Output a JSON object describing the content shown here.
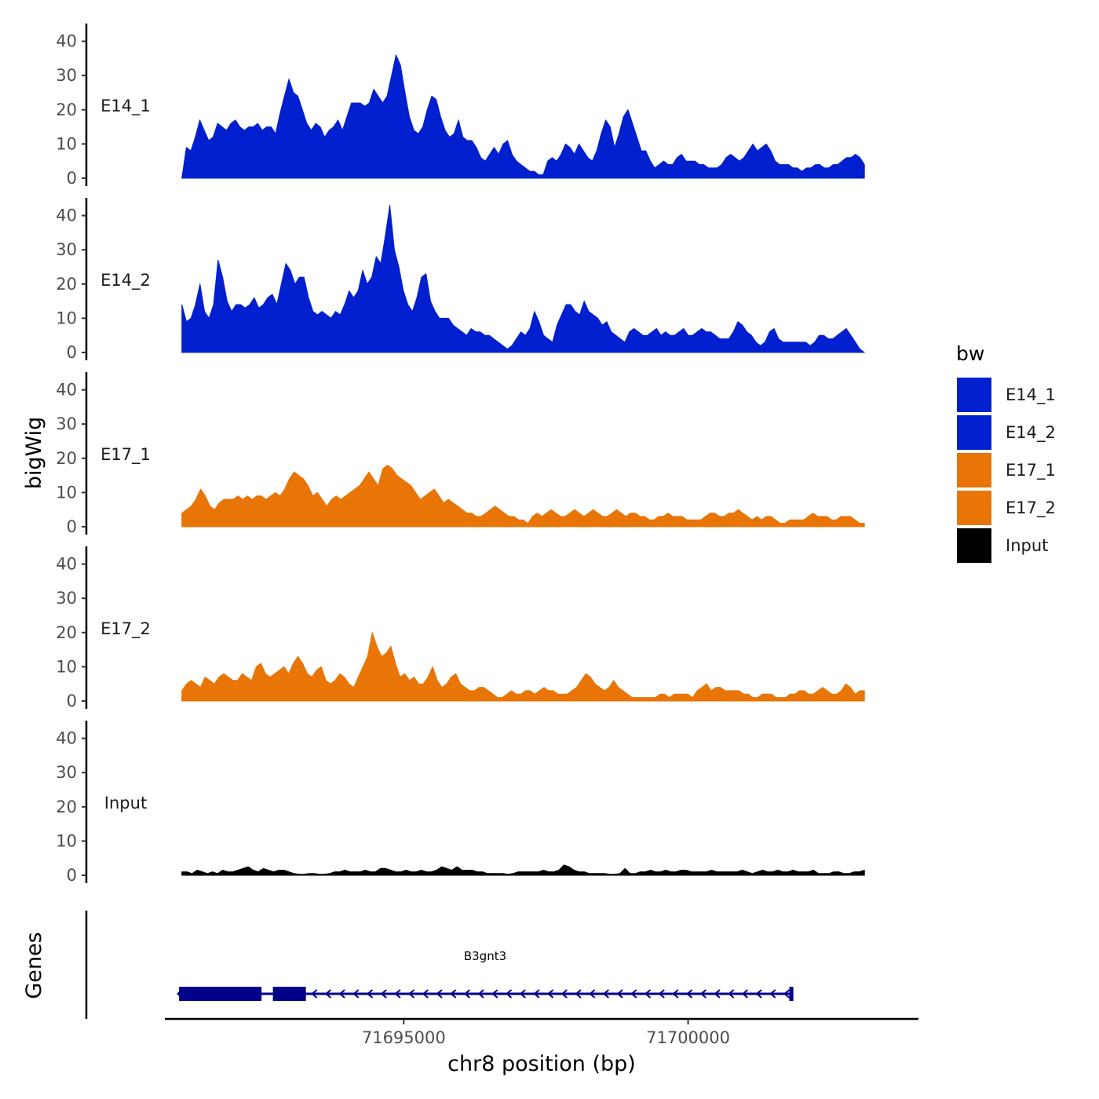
{
  "chart_data": {
    "type": "area",
    "ylabel": "bigWig",
    "xlabel": "chr8 position (bp)",
    "ylim": [
      0,
      45
    ],
    "yticks": [
      0,
      10,
      20,
      30,
      40
    ],
    "xlim": [
      71690800,
      71704050
    ],
    "xticks": [
      71695000,
      71700000
    ],
    "xtick_labels": [
      "71695000",
      "71700000"
    ],
    "genes_label": "Genes",
    "legend": {
      "title": "bw",
      "entries": [
        {
          "name": "E14_1",
          "color": "#0020CF"
        },
        {
          "name": "E14_2",
          "color": "#0020CF"
        },
        {
          "name": "E17_1",
          "color": "#E87505"
        },
        {
          "name": "E17_2",
          "color": "#E87505"
        },
        {
          "name": "Input",
          "color": "#000000"
        }
      ]
    },
    "x_start": 71691100,
    "x_end": 71703100,
    "series": [
      {
        "name": "E14_1",
        "color": "#0020CF",
        "values": [
          0,
          9,
          8,
          12,
          17,
          14,
          11,
          12,
          16,
          15,
          14,
          16,
          17,
          15,
          14,
          15,
          15,
          16,
          14,
          15,
          15,
          13,
          19,
          24,
          29,
          25,
          24,
          20,
          16,
          14,
          16,
          15,
          12,
          14,
          15,
          17,
          14,
          18,
          22,
          22,
          22,
          21,
          22,
          26,
          24,
          22,
          24,
          30,
          36,
          33,
          25,
          18,
          14,
          13,
          15,
          20,
          24,
          23,
          18,
          14,
          12,
          13,
          17,
          12,
          11,
          11,
          9,
          6,
          5,
          7,
          9,
          7,
          10,
          11,
          7,
          5,
          4,
          3,
          2,
          2,
          1,
          1,
          5,
          6,
          5,
          7,
          10,
          9,
          7,
          10,
          8,
          6,
          5,
          8,
          13,
          17,
          15,
          9,
          13,
          18,
          20,
          16,
          12,
          8,
          8,
          5,
          3,
          4,
          5,
          4,
          4,
          6,
          7,
          5,
          5,
          5,
          4,
          4,
          3,
          3,
          3,
          4,
          6,
          7,
          6,
          5,
          6,
          8,
          10,
          8,
          9,
          10,
          8,
          5,
          4,
          4,
          4,
          3,
          3,
          2,
          3,
          3,
          4,
          4,
          3,
          3,
          4,
          4,
          5,
          6,
          6,
          7,
          6,
          4
        ]
      },
      {
        "name": "E14_2",
        "color": "#0020CF",
        "values": [
          14,
          9,
          10,
          14,
          20,
          12,
          10,
          14,
          27,
          22,
          15,
          12,
          14,
          14,
          13,
          14,
          16,
          13,
          14,
          16,
          17,
          14,
          20,
          26,
          24,
          20,
          22,
          22,
          16,
          12,
          11,
          12,
          11,
          10,
          12,
          11,
          14,
          18,
          16,
          18,
          24,
          20,
          22,
          28,
          26,
          34,
          43,
          30,
          25,
          18,
          14,
          12,
          16,
          22,
          23,
          15,
          12,
          10,
          10,
          10,
          8,
          7,
          6,
          5,
          7,
          6,
          6,
          5,
          5,
          4,
          3,
          2,
          1,
          2,
          4,
          6,
          5,
          7,
          12,
          9,
          5,
          4,
          3,
          8,
          11,
          14,
          14,
          12,
          11,
          15,
          12,
          11,
          10,
          8,
          9,
          6,
          5,
          4,
          3,
          6,
          7,
          6,
          5,
          5,
          6,
          7,
          5,
          6,
          5,
          5,
          6,
          7,
          5,
          5,
          6,
          7,
          6,
          6,
          5,
          4,
          4,
          4,
          6,
          9,
          8,
          6,
          5,
          3,
          2,
          3,
          6,
          7,
          4,
          3,
          3,
          3,
          3,
          3,
          3,
          2,
          3,
          5,
          5,
          4,
          4,
          5,
          6,
          7,
          5,
          3,
          1,
          0
        ]
      },
      {
        "name": "E17_1",
        "color": "#E87505",
        "values": [
          4,
          5,
          6,
          8,
          11,
          9,
          6,
          5,
          7,
          8,
          8,
          8,
          9,
          8,
          9,
          8,
          9,
          9,
          8,
          9,
          10,
          9,
          11,
          14,
          16,
          15,
          14,
          12,
          9,
          10,
          8,
          6,
          8,
          9,
          8,
          9,
          10,
          11,
          12,
          14,
          16,
          14,
          12,
          17,
          18,
          17,
          15,
          14,
          13,
          12,
          10,
          8,
          9,
          10,
          11,
          9,
          7,
          8,
          7,
          6,
          5,
          4,
          4,
          3,
          3,
          4,
          5,
          6,
          5,
          4,
          3,
          3,
          2,
          2,
          1,
          3,
          4,
          3,
          4,
          5,
          4,
          3,
          3,
          4,
          5,
          4,
          3,
          4,
          5,
          4,
          3,
          3,
          4,
          5,
          4,
          3,
          4,
          4,
          3,
          3,
          2,
          2,
          3,
          3,
          4,
          3,
          3,
          3,
          2,
          2,
          2,
          2,
          3,
          4,
          4,
          3,
          3,
          4,
          4,
          5,
          4,
          3,
          2,
          3,
          2,
          3,
          3,
          2,
          1,
          1,
          2,
          2,
          2,
          2,
          3,
          4,
          3,
          3,
          3,
          2,
          2,
          3,
          3,
          3,
          2,
          1,
          1
        ]
      },
      {
        "name": "E17_2",
        "color": "#E87505",
        "values": [
          3,
          5,
          6,
          5,
          4,
          7,
          6,
          5,
          7,
          8,
          7,
          6,
          6,
          8,
          7,
          6,
          10,
          11,
          8,
          7,
          8,
          9,
          10,
          8,
          11,
          13,
          11,
          8,
          7,
          9,
          10,
          6,
          5,
          6,
          8,
          7,
          5,
          4,
          7,
          10,
          13,
          20,
          16,
          13,
          14,
          16,
          11,
          7,
          8,
          6,
          7,
          5,
          5,
          7,
          10,
          6,
          4,
          5,
          7,
          8,
          5,
          4,
          3,
          3,
          4,
          4,
          3,
          2,
          1,
          1,
          2,
          3,
          2,
          2,
          3,
          3,
          2,
          3,
          4,
          3,
          3,
          2,
          2,
          2,
          3,
          4,
          6,
          8,
          7,
          5,
          4,
          3,
          4,
          6,
          4,
          3,
          2,
          1,
          1,
          1,
          1,
          1,
          1,
          2,
          2,
          1,
          2,
          2,
          2,
          2,
          1,
          3,
          4,
          5,
          3,
          4,
          4,
          3,
          3,
          3,
          3,
          2,
          2,
          1,
          1,
          2,
          2,
          2,
          1,
          1,
          1,
          2,
          2,
          3,
          3,
          2,
          2,
          3,
          4,
          3,
          2,
          2,
          3,
          5,
          4,
          2,
          3,
          3
        ]
      },
      {
        "name": "Input",
        "color": "#000000",
        "values": [
          1,
          1,
          0.5,
          1.5,
          1,
          0.5,
          1,
          0.5,
          1.5,
          1,
          1,
          1.5,
          2,
          2.5,
          1.5,
          1,
          2,
          1.5,
          1,
          1.5,
          1.5,
          1,
          0.5,
          0.3,
          0.3,
          0.5,
          0.5,
          0.3,
          0.3,
          0.5,
          1,
          1,
          1.5,
          1,
          1,
          1,
          1.5,
          1,
          1,
          2,
          2,
          1.5,
          1,
          1,
          1.5,
          1,
          1,
          1.5,
          1,
          1,
          1.5,
          2.5,
          2,
          1.5,
          2.5,
          1.5,
          1.5,
          1.5,
          1,
          1,
          0.5,
          0.5,
          0.5,
          0.5,
          0.3,
          0.5,
          1,
          1,
          1,
          1,
          1,
          1.5,
          1,
          1,
          1.5,
          3,
          2.5,
          1.5,
          1,
          1,
          0.5,
          0.5,
          0.5,
          0.5,
          0.3,
          0.3,
          0.5,
          2,
          0.5,
          0.5,
          1,
          1,
          1.5,
          1,
          1,
          1.5,
          1,
          1,
          1.5,
          1.5,
          1,
          1,
          1,
          1,
          1.5,
          1,
          1,
          1,
          1,
          1,
          1.5,
          1,
          0.5,
          1,
          1.5,
          1,
          1,
          1.5,
          1,
          1,
          1.5,
          1,
          1,
          1,
          1.5,
          0.5,
          0.5,
          0.5,
          1,
          1,
          0.5,
          0.5,
          1,
          1,
          1.5
        ]
      }
    ],
    "gene": {
      "name": "B3gnt3",
      "start": 71691050,
      "end": 71701850,
      "strand": "-",
      "color": "#00008B",
      "exons": [
        [
          71691050,
          71692500
        ],
        [
          71692700,
          71693280
        ],
        [
          71701780,
          71701850
        ]
      ]
    }
  }
}
